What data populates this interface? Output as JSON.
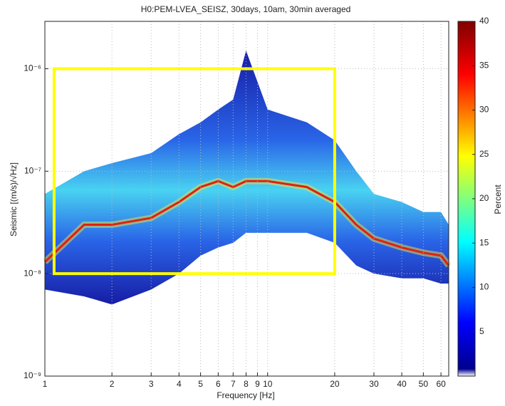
{
  "chart_data": {
    "type": "density",
    "title": "H0:PEM-LVEA_SEISZ, 30days, 10am, 30min averaged",
    "xlabel": "Frequency [Hz]",
    "ylabel": "Seismic [(m/s)/√Hz]",
    "log_x": true,
    "log_y": true,
    "grid": true,
    "xlim": [
      1,
      65
    ],
    "ylim": [
      1e-09,
      2.9e-06
    ],
    "xticks": [
      1,
      2,
      3,
      4,
      5,
      6,
      7,
      8,
      9,
      10,
      20,
      30,
      40,
      50,
      60
    ],
    "yticks": [
      {
        "value": 1e-09,
        "label": "10⁻⁹"
      },
      {
        "value": 1e-08,
        "label": "10⁻⁸"
      },
      {
        "value": 1e-07,
        "label": "10⁻⁷"
      },
      {
        "value": 1e-06,
        "label": "10⁻⁶"
      }
    ],
    "x": [
      1,
      1.5,
      2,
      3,
      4,
      5,
      6,
      7,
      8,
      10,
      15,
      20,
      25,
      30,
      40,
      50,
      60,
      65
    ],
    "upper": [
      6e-08,
      1e-07,
      1.2e-07,
      1.5e-07,
      2.3e-07,
      3e-07,
      4e-07,
      5e-07,
      1.5e-06,
      4e-07,
      3e-07,
      2e-07,
      1e-07,
      6e-08,
      5e-08,
      4e-08,
      4e-08,
      3e-08
    ],
    "lower": [
      7e-09,
      6e-09,
      5e-09,
      7e-09,
      1e-08,
      1.5e-08,
      1.8e-08,
      2e-08,
      2.5e-08,
      2.5e-08,
      2.5e-08,
      2e-08,
      1.2e-08,
      1e-08,
      9e-09,
      9e-09,
      8e-09,
      8e-09
    ],
    "values": [
      1.3e-08,
      3e-08,
      3e-08,
      3.5e-08,
      5e-08,
      7e-08,
      8e-08,
      7e-08,
      8e-08,
      8e-08,
      7e-08,
      5e-08,
      3e-08,
      2.2e-08,
      1.8e-08,
      1.6e-08,
      1.5e-08,
      1.2e-08
    ],
    "highlight": {
      "xlim": [
        1.1,
        20
      ],
      "ylim": [
        1e-08,
        1e-06
      ],
      "color": "#ffff00"
    },
    "colorbar": {
      "label": "Percent",
      "clim": [
        0,
        40
      ],
      "ticks": [
        5,
        10,
        15,
        20,
        25,
        30,
        35,
        40
      ]
    }
  }
}
